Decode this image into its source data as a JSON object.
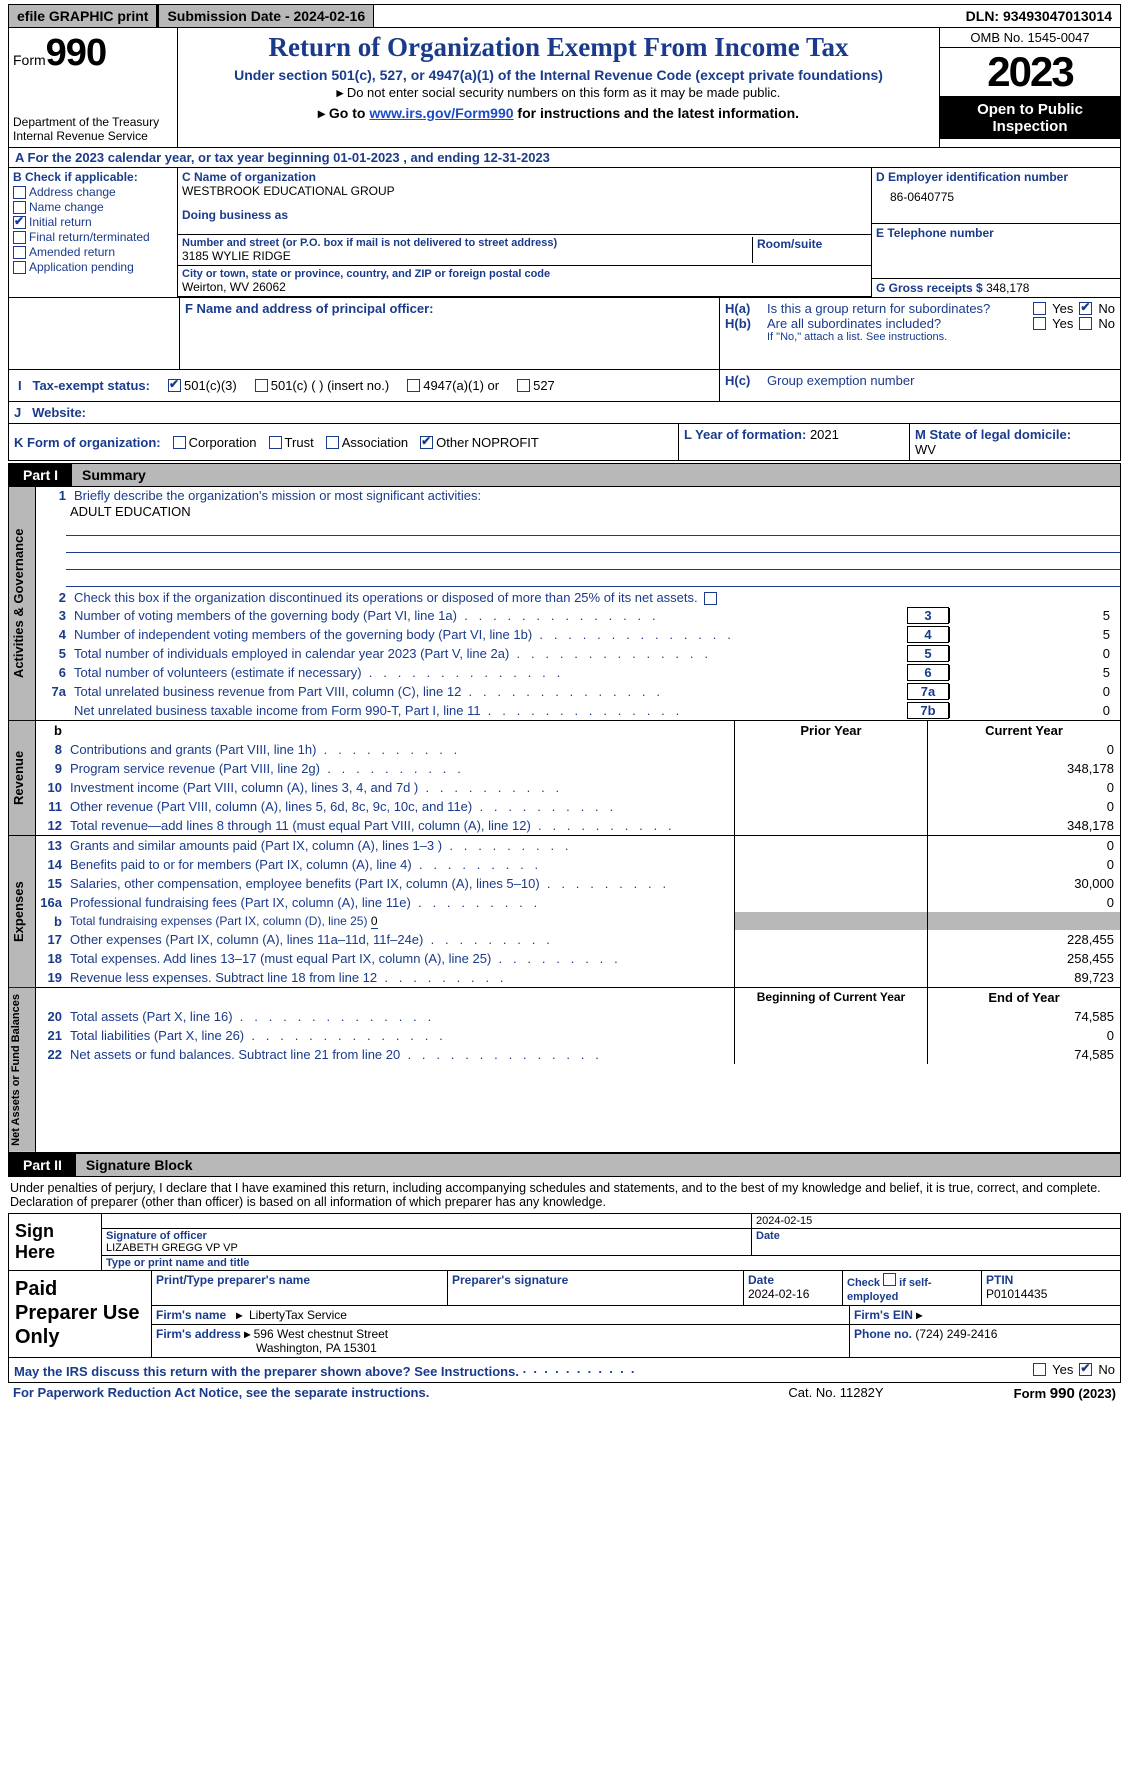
{
  "top": {
    "efile": "efile GRAPHIC print",
    "submission": "Submission Date - 2024-02-16",
    "dln": "DLN: 93493047013014"
  },
  "header": {
    "form_prefix": "Form",
    "form_number": "990",
    "title": "Return of Organization Exempt From Income Tax",
    "sub1": "Under section 501(c), 527, or 4947(a)(1) of the Internal Revenue Code (except private foundations)",
    "sub2": "Do not enter social security numbers on this form as it may be made public.",
    "sub3_prefix": "Go to ",
    "sub3_link": "www.irs.gov/Form990",
    "sub3_suffix": " for instructions and the latest information.",
    "omb": "OMB No. 1545-0047",
    "year": "2023",
    "open_public": "Open to Public Inspection",
    "dept": "Department of the Treasury",
    "irs": "Internal Revenue Service"
  },
  "rowA": "A   For the 2023 calendar year, or tax year beginning 01-01-2023    , and ending 12-31-2023",
  "sectionB": {
    "header": "B Check if applicable:",
    "items": [
      {
        "label": "Address change",
        "checked": false
      },
      {
        "label": "Name change",
        "checked": false
      },
      {
        "label": "Initial return",
        "checked": true
      },
      {
        "label": "Final return/terminated",
        "checked": false
      },
      {
        "label": "Amended return",
        "checked": false
      },
      {
        "label": "Application pending",
        "checked": false
      }
    ]
  },
  "sectionC": {
    "name_label": "C Name of organization",
    "name": "WESTBROOK EDUCATIONAL GROUP",
    "dba_label": "Doing business as",
    "street_label": "Number and street (or P.O. box if mail is not delivered to street address)",
    "street": "3185 WYLIE RIDGE",
    "room_label": "Room/suite",
    "city_label": "City or town, state or province, country, and ZIP or foreign postal code",
    "city": "Weirton, WV  26062"
  },
  "sectionD": {
    "label": "D Employer identification number",
    "value": "86-0640775"
  },
  "sectionE": {
    "label": "E Telephone number",
    "value": ""
  },
  "sectionG": {
    "label": "G Gross receipts $",
    "value": "348,178"
  },
  "sectionF": {
    "label": "F  Name and address of principal officer:",
    "value": ""
  },
  "sectionH": {
    "ha_label": "Is this a group return for subordinates?",
    "ha_yes": false,
    "ha_no": true,
    "hb_label": "Are all subordinates included?",
    "hb_yes": false,
    "hb_no": false,
    "hb_note": "If \"No,\" attach a list. See instructions.",
    "hc_label": "Group exemption number",
    "hc_value": ""
  },
  "sectionI": {
    "label": "Tax-exempt status:",
    "c3_checked": true,
    "opt_501c3": "501(c)(3)",
    "opt_501c": "501(c) (  ) (insert no.)",
    "opt_4947": "4947(a)(1) or",
    "opt_527": "527"
  },
  "sectionJ": {
    "label": "Website:",
    "value": ""
  },
  "sectionK": {
    "label": "K Form of organization:",
    "corp": false,
    "trust": false,
    "assoc": false,
    "other": true,
    "other_text": "NOPROFIT",
    "corp_label": "Corporation",
    "trust_label": "Trust",
    "assoc_label": "Association",
    "other_label": "Other"
  },
  "sectionL": {
    "label": "L Year of formation:",
    "value": "2021"
  },
  "sectionM": {
    "label": "M State of legal domicile:",
    "value": "WV"
  },
  "part1": {
    "tab": "Part I",
    "title": "Summary",
    "line1_label": "Briefly describe the organization's mission or most significant activities:",
    "mission": "ADULT EDUCATION",
    "line2": "Check this box         if the organization discontinued its operations or disposed of more than 25% of its net assets.",
    "lines_gov": [
      {
        "n": "3",
        "t": "Number of voting members of the governing body (Part VI, line 1a)",
        "box": "3",
        "v": "5"
      },
      {
        "n": "4",
        "t": "Number of independent voting members of the governing body (Part VI, line 1b)",
        "box": "4",
        "v": "5"
      },
      {
        "n": "5",
        "t": "Total number of individuals employed in calendar year 2023 (Part V, line 2a)",
        "box": "5",
        "v": "0"
      },
      {
        "n": "6",
        "t": "Total number of volunteers (estimate if necessary)",
        "box": "6",
        "v": "5"
      },
      {
        "n": "7a",
        "t": "Total unrelated business revenue from Part VIII, column (C), line 12",
        "box": "7a",
        "v": "0"
      },
      {
        "n": "",
        "t": "Net unrelated business taxable income from Form 990-T, Part I, line 11",
        "box": "7b",
        "v": "0"
      }
    ],
    "col_prior": "Prior Year",
    "col_curr": "Current Year",
    "revenue": [
      {
        "n": "8",
        "t": "Contributions and grants (Part VIII, line 1h)",
        "p": "",
        "c": "0"
      },
      {
        "n": "9",
        "t": "Program service revenue (Part VIII, line 2g)",
        "p": "",
        "c": "348,178"
      },
      {
        "n": "10",
        "t": "Investment income (Part VIII, column (A), lines 3, 4, and 7d )",
        "p": "",
        "c": "0"
      },
      {
        "n": "11",
        "t": "Other revenue (Part VIII, column (A), lines 5, 6d, 8c, 9c, 10c, and 11e)",
        "p": "",
        "c": "0"
      },
      {
        "n": "12",
        "t": "Total revenue—add lines 8 through 11 (must equal Part VIII, column (A), line 12)",
        "p": "",
        "c": "348,178"
      }
    ],
    "expenses": [
      {
        "n": "13",
        "t": "Grants and similar amounts paid (Part IX, column (A), lines 1–3 )",
        "p": "",
        "c": "0"
      },
      {
        "n": "14",
        "t": "Benefits paid to or for members (Part IX, column (A), line 4)",
        "p": "",
        "c": "0"
      },
      {
        "n": "15",
        "t": "Salaries, other compensation, employee benefits (Part IX, column (A), lines 5–10)",
        "p": "",
        "c": "30,000"
      },
      {
        "n": "16a",
        "t": "Professional fundraising fees (Part IX, column (A), line 11e)",
        "p": "",
        "c": "0"
      },
      {
        "n": "b",
        "t": "Total fundraising expenses (Part IX, column (D), line 25)",
        "val": "0",
        "shaded": true
      },
      {
        "n": "17",
        "t": "Other expenses (Part IX, column (A), lines 11a–11d, 11f–24e)",
        "p": "",
        "c": "228,455"
      },
      {
        "n": "18",
        "t": "Total expenses. Add lines 13–17 (must equal Part IX, column (A), line 25)",
        "p": "",
        "c": "258,455"
      },
      {
        "n": "19",
        "t": "Revenue less expenses. Subtract line 18 from line 12",
        "p": "",
        "c": "89,723"
      }
    ],
    "col_begin": "Beginning of Current Year",
    "col_end": "End of Year",
    "netassets": [
      {
        "n": "20",
        "t": "Total assets (Part X, line 16)",
        "p": "",
        "c": "74,585"
      },
      {
        "n": "21",
        "t": "Total liabilities (Part X, line 26)",
        "p": "",
        "c": "0"
      },
      {
        "n": "22",
        "t": "Net assets or fund balances. Subtract line 21 from line 20",
        "p": "",
        "c": "74,585"
      }
    ],
    "vtab_gov": "Activities & Governance",
    "vtab_rev": "Revenue",
    "vtab_exp": "Expenses",
    "vtab_net": "Net Assets or Fund Balances"
  },
  "part2": {
    "tab": "Part II",
    "title": "Signature Block",
    "intro": "Under penalties of perjury, I declare that I have examined this return, including accompanying schedules and statements, and to the best of my knowledge and belief, it is true, correct, and complete. Declaration of preparer (other than officer) is based on all information of which preparer has any knowledge.",
    "sign_here": "Sign Here",
    "sig_date": "2024-02-15",
    "sig_officer_label": "Signature of officer",
    "sig_officer": "LIZABETH GREGG VP VP",
    "sig_date_label": "Date",
    "type_print_label": "Type or print name and title",
    "paid_prep": "Paid Preparer Use Only",
    "prep_name_label": "Print/Type preparer's name",
    "prep_sig_label": "Preparer's signature",
    "prep_date_label": "Date",
    "prep_date": "2024-02-16",
    "prep_self_label": "Check         if self-employed",
    "prep_ptin_label": "PTIN",
    "prep_ptin": "P01014435",
    "firm_name_label": "Firm's name",
    "firm_name": "LibertyTax Service",
    "firm_ein_label": "Firm's EIN",
    "firm_addr_label": "Firm's address",
    "firm_addr1": "596 West chestnut Street",
    "firm_addr2": "Washington, PA  15301",
    "firm_phone_label": "Phone no.",
    "firm_phone": "(724) 249-2416",
    "discuss": "May the IRS discuss this return with the preparer shown above? See Instructions.",
    "discuss_yes": false,
    "discuss_no": true
  },
  "footer": {
    "paperwork": "For Paperwork Reduction Act Notice, see the separate instructions.",
    "catno": "Cat. No. 11282Y",
    "formno": "Form 990 (2023)"
  },
  "labels": {
    "yes": "Yes",
    "no": "No"
  },
  "colors": {
    "navy": "#1a3b8c",
    "gray": "#b8b8b8",
    "link": "#1a4ccc"
  }
}
